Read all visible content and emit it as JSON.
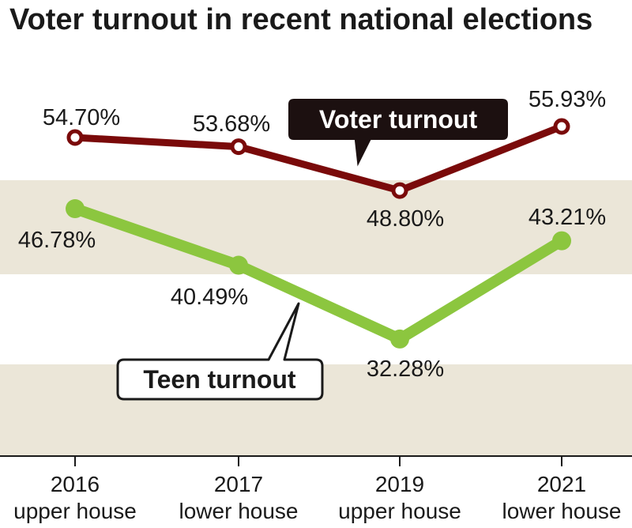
{
  "chart_data": {
    "type": "line",
    "title": "Voter turnout in recent national elections",
    "x": [
      "2016",
      "2017",
      "2019",
      "2021"
    ],
    "x_sublabels": [
      "upper house",
      "lower house",
      "upper house",
      "lower house"
    ],
    "series": [
      {
        "name": "Voter turnout",
        "values": [
          54.7,
          53.68,
          48.8,
          55.93
        ],
        "labels": [
          "54.70%",
          "53.68%",
          "48.80%",
          "55.93%"
        ],
        "color": "#7a0a0a"
      },
      {
        "name": "Teen turnout",
        "values": [
          46.78,
          40.49,
          32.28,
          43.21
        ],
        "labels": [
          "46.78%",
          "40.49%",
          "32.28%",
          "43.21%"
        ],
        "color": "#8cc63f"
      }
    ],
    "ylim": [
      20,
      60
    ],
    "grid": false,
    "band_color": "#ebe6d8"
  }
}
